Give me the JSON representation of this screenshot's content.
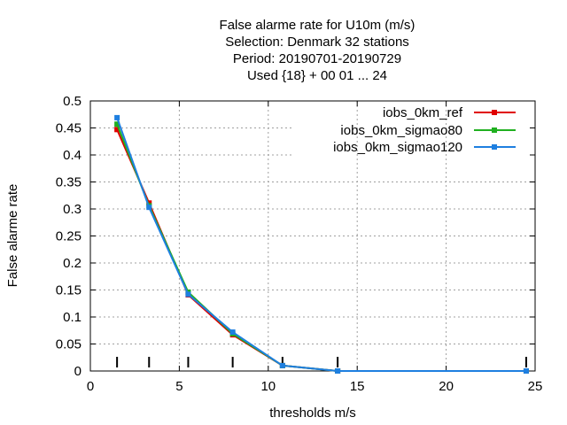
{
  "chart_data": {
    "type": "line",
    "title_lines": [
      "False alarme rate  for U10m (m/s)",
      "Selection: Denmark      32 stations",
      "Period: 20190701-20190729",
      "Used {18} + 00 01 ... 24"
    ],
    "xlabel": "thresholds m/s",
    "ylabel": "False alarme rate",
    "xlim": [
      0,
      25
    ],
    "ylim": [
      0,
      0.5
    ],
    "xticks": [
      0,
      5,
      10,
      15,
      20,
      25
    ],
    "yticks": [
      0,
      0.05,
      0.1,
      0.15,
      0.2,
      0.25,
      0.3,
      0.35,
      0.4,
      0.45,
      0.5
    ],
    "xtick_labels": [
      "0",
      "5",
      "10",
      "15",
      "20",
      "25"
    ],
    "ytick_labels": [
      "0",
      "0.05",
      "0.1",
      "0.15",
      "0.2",
      "0.25",
      "0.3",
      "0.35",
      "0.4",
      "0.45",
      "0.5"
    ],
    "grid": true,
    "legend_position": "top-right",
    "threshold_markers": [
      1.5,
      3.3,
      5.5,
      8.0,
      10.8,
      13.9,
      24.5
    ],
    "series": [
      {
        "name": "iobs_0km_ref",
        "color": "#e00000",
        "x": [
          1.5,
          3.3,
          5.5,
          8.0,
          10.8,
          13.9,
          24.5
        ],
        "y": [
          0.447,
          0.311,
          0.141,
          0.067,
          0.01,
          0.0,
          0.0
        ]
      },
      {
        "name": "iobs_0km_sigmao80",
        "color": "#20b020",
        "x": [
          1.5,
          3.3,
          5.5,
          8.0,
          10.8,
          13.9,
          24.5
        ],
        "y": [
          0.457,
          0.306,
          0.146,
          0.069,
          0.01,
          0.0,
          0.0
        ]
      },
      {
        "name": "iobs_0km_sigmao120",
        "color": "#1e7fe0",
        "x": [
          1.5,
          3.3,
          5.5,
          8.0,
          10.8,
          13.9,
          24.5
        ],
        "y": [
          0.469,
          0.303,
          0.142,
          0.072,
          0.01,
          0.0,
          0.0
        ]
      }
    ]
  }
}
